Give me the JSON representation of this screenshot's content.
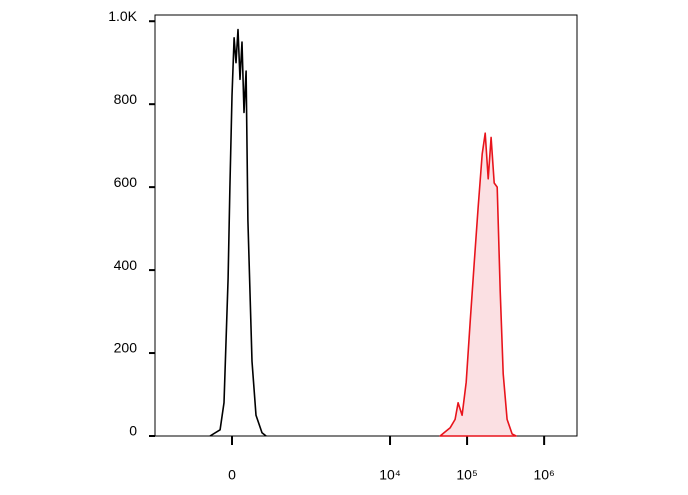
{
  "chart_data": {
    "type": "histogram-overlay",
    "xscale": "biexponential",
    "xlim": [
      -880,
      2670000
    ],
    "xticks": [
      0,
      {
        "value": 10000,
        "label": "10⁴"
      },
      {
        "value": 100000,
        "label": "10⁵"
      },
      {
        "value": 1000000,
        "label": "10⁶"
      }
    ],
    "ylim": [
      0,
      1015
    ],
    "yticks": [
      0,
      200,
      400,
      600,
      800,
      {
        "value": 1000,
        "label": "1.0K"
      }
    ],
    "series": [
      {
        "color": "#000000",
        "fill": false,
        "x": [
          -126,
          -65,
          -43,
          -21,
          -11,
          0,
          11,
          21,
          32,
          43,
          54,
          65,
          77,
          88,
          113,
          139,
          182,
          214
        ],
        "values": [
          0,
          15,
          80,
          380,
          600,
          820,
          960,
          900,
          980,
          860,
          950,
          780,
          880,
          520,
          180,
          50,
          8,
          0
        ]
      },
      {
        "color": "#e8141c",
        "fill": "#fbe0e3",
        "x": [
          44700,
          51900,
          60300,
          70000,
          76500,
          86300,
          97300,
          110000,
          124000,
          139000,
          157000,
          172000,
          188000,
          205000,
          225000,
          246000,
          269000,
          294000,
          331000,
          384000,
          433000
        ],
        "values": [
          0,
          10,
          20,
          40,
          80,
          50,
          130,
          280,
          420,
          550,
          680,
          730,
          620,
          720,
          610,
          600,
          350,
          150,
          40,
          5,
          0
        ]
      }
    ]
  }
}
